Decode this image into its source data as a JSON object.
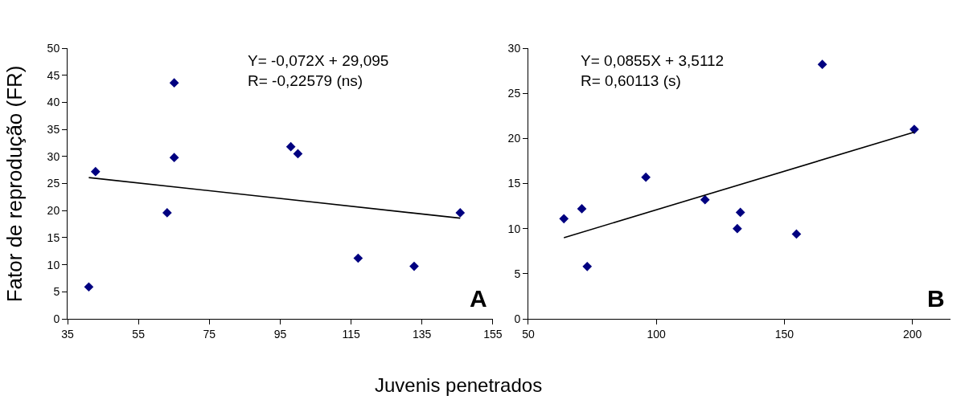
{
  "chart_data": [
    {
      "type": "scatter",
      "ylabel": "Fator de reprodução (FR)",
      "xlabel": "Juvenis penetrados",
      "xlim": [
        35,
        155
      ],
      "xticks": [
        35,
        55,
        75,
        95,
        115,
        135,
        155
      ],
      "ylim": [
        0,
        50
      ],
      "yticks": [
        0,
        5,
        10,
        15,
        20,
        25,
        30,
        35,
        40,
        45,
        50
      ],
      "annotations": [
        "Y= -0,072X + 29,095\nR= -0,22579 (ns)",
        "A"
      ],
      "series": [
        {
          "marker": "diamond",
          "color": "#000080",
          "x": [
            41.0,
            42.9,
            65.1,
            65.1,
            63.1,
            98.0,
            100.0,
            117.0,
            132.8,
            145.8
          ],
          "values": [
            5.9,
            27.2,
            43.6,
            29.8,
            19.6,
            31.8,
            30.5,
            11.2,
            9.7,
            19.6
          ]
        },
        {
          "type": "line",
          "marker": "none",
          "line_style": "solid",
          "color": "#000000",
          "x": [
            41.0,
            145.8
          ],
          "values": [
            26.1,
            18.6
          ]
        }
      ]
    },
    {
      "type": "scatter",
      "xlim": [
        50,
        215
      ],
      "xticks": [
        50,
        100,
        150,
        200
      ],
      "ylim": [
        0,
        30
      ],
      "yticks": [
        0,
        5,
        10,
        15,
        20,
        25,
        30
      ],
      "annotations": [
        "Y= 0,0855X + 3,5112\nR= 0,60113 (s)",
        "B"
      ],
      "series": [
        {
          "marker": "diamond",
          "color": "#000080",
          "x": [
            63.9,
            70.9,
            73.0,
            95.9,
            119.0,
            132.8,
            131.6,
            154.7,
            164.8,
            200.7
          ],
          "values": [
            11.1,
            12.2,
            5.8,
            15.7,
            13.2,
            11.8,
            10.0,
            9.4,
            28.2,
            21.0
          ]
        },
        {
          "type": "line",
          "marker": "none",
          "line_style": "solid",
          "color": "#000000",
          "x": [
            63.9,
            200.7
          ],
          "values": [
            9.0,
            20.7
          ]
        }
      ]
    }
  ]
}
